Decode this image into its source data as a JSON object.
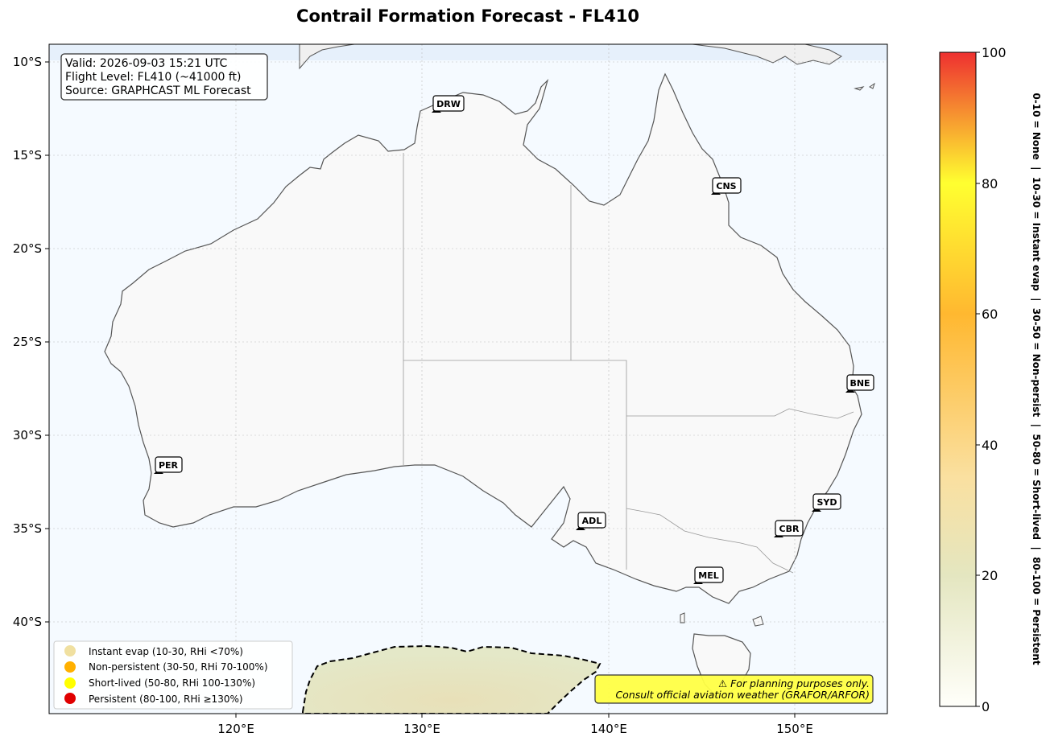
{
  "title": "Contrail Formation Forecast - FL410",
  "info_box": {
    "valid": "Valid: 2026-09-03 15:21 UTC",
    "flight_level": "Flight Level: FL410 (~41000 ft)",
    "source": "Source: GRAPHCAST ML Forecast"
  },
  "lat_ticks": [
    "10°S",
    "15°S",
    "20°S",
    "25°S",
    "30°S",
    "35°S",
    "40°S"
  ],
  "lon_ticks": [
    "120°E",
    "130°E",
    "140°E",
    "150°E"
  ],
  "cities": [
    {
      "code": "DRW"
    },
    {
      "code": "CNS"
    },
    {
      "code": "BNE"
    },
    {
      "code": "PER"
    },
    {
      "code": "SYD"
    },
    {
      "code": "ADL"
    },
    {
      "code": "CBR"
    },
    {
      "code": "MEL"
    }
  ],
  "legend": [
    {
      "label": "Instant evap (10-30, RHi <70%)",
      "color": "#f0e0a0"
    },
    {
      "label": "Non-persistent (30-50, RHi 70-100%)",
      "color": "#ffb000"
    },
    {
      "label": "Short-lived (50-80, RHi 100-130%)",
      "color": "#ffff00"
    },
    {
      "label": "Persistent (80-100, RHi ≥130%)",
      "color": "#e00000"
    }
  ],
  "warning": {
    "line1": "⚠ For planning purposes only.",
    "line2": "Consult official aviation weather (GRAFOR/ARFOR)"
  },
  "colorbar": {
    "ticks": [
      "0",
      "20",
      "40",
      "60",
      "80",
      "100"
    ],
    "side_label": "0-10 = None  |  10-30 = Instant evap  |  30-50 = Non-persist  |  50-80 = Short-lived  |  80-100 = Persistent"
  },
  "colors": {
    "ocean": "#f5faff",
    "land": "#f9f9f9",
    "warning_bg": "#ffff44"
  }
}
